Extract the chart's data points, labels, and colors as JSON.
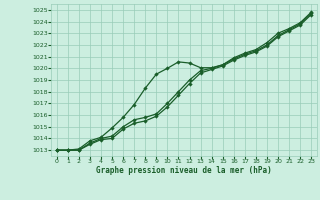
{
  "title": "Graphe pression niveau de la mer (hPa)",
  "xlim": [
    -0.5,
    23.5
  ],
  "ylim": [
    1012.5,
    1025.5
  ],
  "yticks": [
    1013,
    1014,
    1015,
    1016,
    1017,
    1018,
    1019,
    1020,
    1021,
    1022,
    1023,
    1024,
    1025
  ],
  "xticks": [
    0,
    1,
    2,
    3,
    4,
    5,
    6,
    7,
    8,
    9,
    10,
    11,
    12,
    13,
    14,
    15,
    16,
    17,
    18,
    19,
    20,
    21,
    22,
    23
  ],
  "bg_color": "#cceee0",
  "grid_color": "#99ccb8",
  "line_color": "#1a5e2a",
  "line1_x": [
    0,
    1,
    2,
    3,
    4,
    5,
    6,
    7,
    8,
    9,
    10,
    11,
    12,
    13,
    14,
    15,
    16,
    17,
    18,
    19,
    20,
    21,
    22,
    23
  ],
  "line1_y": [
    1013.0,
    1013.0,
    1013.1,
    1013.8,
    1014.1,
    1014.9,
    1015.8,
    1016.9,
    1018.3,
    1019.5,
    1020.0,
    1020.55,
    1020.45,
    1020.05,
    1020.05,
    1020.3,
    1020.9,
    1021.3,
    1021.6,
    1022.2,
    1023.0,
    1023.4,
    1023.9,
    1024.8
  ],
  "line2_x": [
    0,
    1,
    2,
    3,
    4,
    5,
    6,
    7,
    8,
    9,
    10,
    11,
    12,
    13,
    14,
    15,
    16,
    17,
    18,
    19,
    20,
    21,
    22,
    23
  ],
  "line2_y": [
    1013.0,
    1013.0,
    1013.0,
    1013.6,
    1014.0,
    1014.2,
    1015.0,
    1015.6,
    1015.8,
    1016.1,
    1017.0,
    1018.0,
    1019.0,
    1019.8,
    1020.0,
    1020.3,
    1020.8,
    1021.2,
    1021.5,
    1022.0,
    1022.8,
    1023.3,
    1023.8,
    1024.7
  ],
  "line3_x": [
    0,
    1,
    2,
    3,
    4,
    5,
    6,
    7,
    8,
    9,
    10,
    11,
    12,
    13,
    14,
    15,
    16,
    17,
    18,
    19,
    20,
    21,
    22,
    23
  ],
  "line3_y": [
    1013.0,
    1013.0,
    1013.0,
    1013.5,
    1013.9,
    1014.0,
    1014.8,
    1015.3,
    1015.5,
    1015.9,
    1016.7,
    1017.7,
    1018.7,
    1019.6,
    1019.9,
    1020.2,
    1020.7,
    1021.1,
    1021.4,
    1021.9,
    1022.7,
    1023.2,
    1023.7,
    1024.6
  ]
}
